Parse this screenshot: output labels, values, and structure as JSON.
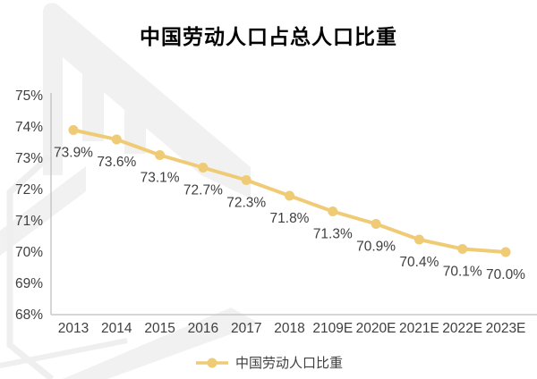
{
  "page": {
    "title": "中国劳动人口占总人口比重"
  },
  "chart_data": {
    "type": "line",
    "title": "中国劳动人口占总人口比重",
    "categories": [
      "2013",
      "2014",
      "2015",
      "2016",
      "2017",
      "2018",
      "2109E",
      "2020E",
      "2021E",
      "2022E",
      "2023E"
    ],
    "series": [
      {
        "name": "中国劳动人口比重",
        "values": [
          73.9,
          73.6,
          73.1,
          72.7,
          72.3,
          71.8,
          71.3,
          70.9,
          70.4,
          70.1,
          70.0
        ]
      }
    ],
    "data_labels": [
      "73.9%",
      "73.6%",
      "73.1%",
      "72.7%",
      "72.3%",
      "71.8%",
      "71.3%",
      "70.9%",
      "70.4%",
      "70.1%",
      "70.0%"
    ],
    "yticks": [
      75,
      74,
      73,
      72,
      71,
      70,
      69,
      68
    ],
    "ytick_labels": [
      "75%",
      "74%",
      "73%",
      "72%",
      "71%",
      "70%",
      "69%",
      "68%"
    ],
    "ylim": [
      68,
      75
    ],
    "grid": false,
    "legend_position": "bottom",
    "legend_label": "中国劳动人口比重",
    "colors": {
      "line": "#EFCB76",
      "marker": "#EFCB76",
      "text": "#3F3F3F",
      "axis": "#C8C8C8",
      "title": "#000000",
      "watermark": "#F1F1F1"
    }
  }
}
